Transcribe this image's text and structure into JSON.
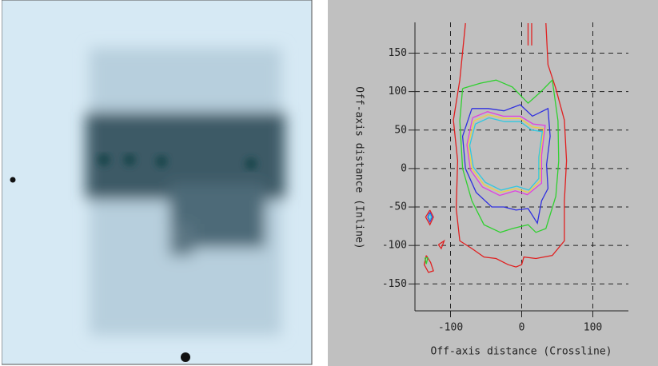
{
  "chart_data": {
    "type": "contour",
    "x_label": "Off-axis distance (Crossline)",
    "y_label": "Off-axis distance (Inline)",
    "xlim": [
      -150,
      150
    ],
    "ylim": [
      -185,
      190
    ],
    "xticks": [
      -100,
      0,
      100
    ],
    "yticks": [
      -150,
      -100,
      -50,
      0,
      50,
      100,
      150
    ],
    "grid": true,
    "contours": [
      {
        "color": "#e02020",
        "x": [
          -79,
          -87,
          -96,
          -90,
          -92,
          -87,
          -70,
          -53,
          -36,
          -19,
          -8,
          0,
          3,
          20,
          43,
          60,
          60,
          63,
          60,
          48,
          37,
          34,
          null,
          -134,
          -128,
          -124,
          -131,
          -137,
          -134,
          null,
          -117,
          -109,
          -113,
          -117,
          null,
          -129,
          -124,
          -129,
          -135,
          -129,
          null,
          9,
          9,
          null,
          14,
          14
        ],
        "y": [
          189,
          115,
          63,
          10,
          -52,
          -94,
          -104,
          -115,
          -117,
          -125,
          -128,
          -125,
          -115,
          -117,
          -113,
          -94,
          -42,
          10,
          63,
          104,
          135,
          189,
          null,
          -113,
          -122,
          -133,
          -135,
          -125,
          -113,
          null,
          -99,
          -94,
          -104,
          -99,
          null,
          -54,
          -63,
          -73,
          -63,
          -54,
          null,
          189,
          160,
          null,
          189,
          160
        ]
      },
      {
        "color": "#30d030",
        "x": [
          -83,
          -87,
          -83,
          -70,
          -53,
          -30,
          -13,
          9,
          20,
          34,
          48,
          52,
          51,
          43,
          26,
          9,
          -13,
          -36,
          -58,
          -83,
          null,
          -136,
          -134,
          -132,
          -136
        ],
        "y": [
          104,
          62,
          0,
          -42,
          -73,
          -83,
          -78,
          -73,
          -83,
          -78,
          -36,
          10,
          62,
          115,
          99,
          85,
          106,
          115,
          111,
          104,
          null,
          -116,
          -124,
          -116,
          -116
        ]
      },
      {
        "color": "#3030e0",
        "x": [
          -70,
          -83,
          -79,
          -64,
          -42,
          -25,
          -8,
          9,
          22,
          28,
          37,
          35,
          40,
          37,
          15,
          -2,
          -25,
          -47,
          -70,
          null,
          -129,
          -126,
          -129,
          -132,
          -129
        ],
        "y": [
          78,
          42,
          0,
          -31,
          -50,
          -50,
          -54,
          -52,
          -71,
          -42,
          -26,
          5,
          42,
          78,
          68,
          83,
          75,
          78,
          78,
          null,
          -57,
          -63,
          -69,
          -63,
          -57
        ]
      },
      {
        "color": "#f0d040",
        "x": [
          -67,
          -75,
          -70,
          -53,
          -30,
          -8,
          9,
          26,
          26,
          31,
          15,
          -2,
          -25,
          -47,
          -67
        ],
        "y": [
          62,
          31,
          0,
          -21,
          -31,
          -26,
          -31,
          -16,
          16,
          52,
          54,
          65,
          65,
          70,
          62
        ]
      },
      {
        "color": "#e040e0",
        "x": [
          -69,
          -77,
          -72,
          -55,
          -31,
          -9,
          8,
          28,
          28,
          33,
          16,
          -2,
          -26,
          -48,
          -69
        ],
        "y": [
          66,
          31,
          -2,
          -24,
          -35,
          -29,
          -34,
          -19,
          17,
          56,
          58,
          68,
          68,
          74,
          66
        ]
      },
      {
        "color": "#30c8e0",
        "x": [
          -65,
          -73,
          -68,
          -51,
          -29,
          -7,
          10,
          24,
          24,
          29,
          14,
          -2,
          -24,
          -46,
          -65,
          null,
          -129,
          -127,
          -129,
          -131,
          -129
        ],
        "y": [
          58,
          30,
          2,
          -18,
          -28,
          -23,
          -28,
          -13,
          15,
          48,
          50,
          61,
          61,
          66,
          58,
          null,
          -59,
          -63,
          -67,
          -63,
          -59
        ]
      }
    ]
  }
}
